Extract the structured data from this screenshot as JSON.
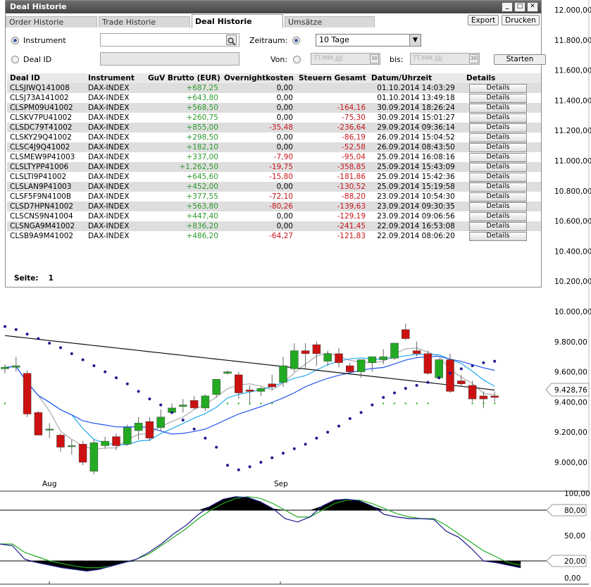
{
  "window": {
    "title": "Deal Historie",
    "controls": [
      "_",
      "□",
      "✕"
    ]
  },
  "tabs": [
    {
      "label": "Order Historie",
      "active": false
    },
    {
      "label": "Trade Historie",
      "active": false
    },
    {
      "label": "Deal Historie",
      "active": true
    },
    {
      "label": "Umsätze",
      "active": false
    }
  ],
  "toolbar": {
    "export_label": "Export",
    "print_label": "Drucken"
  },
  "filters": {
    "instrument_label": "Instrument",
    "instrument_value": "",
    "dealid_label": "Deal ID",
    "dealid_value": "",
    "zeitraum_label": "Zeitraum:",
    "zeitraum_value": "10 Tage",
    "von_label": "Von:",
    "von_placeholder": "TT.MM.JJJJ",
    "bis_label": "bis:",
    "bis_placeholder": "TT.MM.JJJJ",
    "start_label": "Starten"
  },
  "table": {
    "headers": [
      "Deal ID",
      "Instrument",
      "GuV Brutto (EUR)",
      "Overnightkosten",
      "Steuern Gesamt",
      "Datum/Uhrzeit",
      "Details"
    ],
    "details_label": "Details",
    "rows": [
      [
        "CLSJIWQ141008",
        "DAX-INDEX",
        "+687,25",
        "0,00",
        "",
        "01.10.2014 14:03:29"
      ],
      [
        "CLSJ73A141002",
        "DAX-INDEX",
        "+643,80",
        "0,00",
        "",
        "01.10.2014 13:49:18"
      ],
      [
        "CLSPM09U41002",
        "DAX-INDEX",
        "+568,50",
        "0,00",
        "-164,16",
        "30.09.2014 18:26:24"
      ],
      [
        "CLSKV7PU41002",
        "DAX-INDEX",
        "+260,75",
        "0,00",
        "-75,30",
        "30.09.2014 15:01:27"
      ],
      [
        "CLSDC79T41002",
        "DAX-INDEX",
        "+855,00",
        "-35,48",
        "-236,64",
        "29.09.2014 09:36:14"
      ],
      [
        "CLSKY29Q41002",
        "DAX-INDEX",
        "+298,50",
        "0,00",
        "-86,19",
        "26.09.2014 15:04:52"
      ],
      [
        "CLSC4J9Q41002",
        "DAX-INDEX",
        "+182,10",
        "0,00",
        "-52,58",
        "26.09.2014 08:43:50"
      ],
      [
        "CLSMEW9P41003",
        "DAX-INDEX",
        "+337,00",
        "-7,90",
        "-95,04",
        "25.09.2014 16:08:16"
      ],
      [
        "CLSLTYPP41006",
        "DAX-INDEX",
        "+1.262,50",
        "-19,75",
        "-358,85",
        "25.09.2014 15:43:09"
      ],
      [
        "CLSLTI9P41002",
        "DAX-INDEX",
        "+645,60",
        "-15,80",
        "-181,86",
        "25.09.2014 15:42:36"
      ],
      [
        "CLSLAN9P41003",
        "DAX-INDEX",
        "+452,00",
        "0,00",
        "-130,52",
        "25.09.2014 15:19:58"
      ],
      [
        "CLSF5F9N4100B",
        "DAX-INDEX",
        "+377,55",
        "-72,10",
        "-88,20",
        "23.09.2014 10:54:30"
      ],
      [
        "CLSD7HPN41002",
        "DAX-INDEX",
        "+563,80",
        "-80,26",
        "-139,63",
        "23.09.2014 09:30:35"
      ],
      [
        "CLSCNS9N41004",
        "DAX-INDEX",
        "+447,40",
        "0,00",
        "-129,19",
        "23.09.2014 09:06:56"
      ],
      [
        "CLSNGA9M41002",
        "DAX-INDEX",
        "+836,20",
        "0,00",
        "-241,45",
        "22.09.2014 16:53:08"
      ],
      [
        "CLSB9A9M41002",
        "DAX-INDEX",
        "+486,20",
        "-64,27",
        "-121,83",
        "22.09.2014 08:06:20"
      ]
    ],
    "page_label": "Seite:",
    "page_value": "1"
  },
  "chart": {
    "price_labels": [
      "12.000,00",
      "11.800,00",
      "11.600,00",
      "11.400,00",
      "11.200,00",
      "11.000,00",
      "10.800,00",
      "10.600,00",
      "10.400,00",
      "10.200,00",
      "10.000,00",
      "9.800,00",
      "9.600,00",
      "9.400,00",
      "9.200,00",
      "9.000,00"
    ],
    "last_price": "9.428,76",
    "x_labels": [
      "Aug",
      "Sep"
    ],
    "osc_labels": [
      "100,00",
      "80,00",
      "50,00",
      "20,00",
      "0,00"
    ],
    "colors": {
      "up": "#22aa22",
      "down": "#cc1111",
      "ma_long": "#111111",
      "ma_mid": "#2255ee",
      "ma_short": "#22aaee",
      "ma_gray": "#aaaaaa",
      "sar": "#1a1a8c",
      "stoch_k": "#1a1a8c",
      "stoch_d": "#22aa22"
    }
  },
  "chart_data": {
    "type": "candlestick",
    "title": "",
    "ylim": [
      8900,
      12050
    ],
    "candles": [
      {
        "o": 9620,
        "h": 9650,
        "l": 9590,
        "c": 9630
      },
      {
        "o": 9630,
        "h": 9700,
        "l": 9600,
        "c": 9640
      },
      {
        "o": 9590,
        "h": 9610,
        "l": 9300,
        "c": 9320
      },
      {
        "o": 9330,
        "h": 9340,
        "l": 9180,
        "c": 9180
      },
      {
        "o": 9220,
        "h": 9260,
        "l": 9160,
        "c": 9220
      },
      {
        "o": 9180,
        "h": 9190,
        "l": 9070,
        "c": 9100
      },
      {
        "o": 9110,
        "h": 9150,
        "l": 9050,
        "c": 9110
      },
      {
        "o": 9120,
        "h": 9140,
        "l": 8980,
        "c": 9000
      },
      {
        "o": 8940,
        "h": 9150,
        "l": 8920,
        "c": 9130
      },
      {
        "o": 9110,
        "h": 9170,
        "l": 9090,
        "c": 9140
      },
      {
        "o": 9170,
        "h": 9190,
        "l": 9080,
        "c": 9110
      },
      {
        "o": 9120,
        "h": 9250,
        "l": 9110,
        "c": 9230
      },
      {
        "o": 9210,
        "h": 9300,
        "l": 9150,
        "c": 9260
      },
      {
        "o": 9270,
        "h": 9300,
        "l": 9140,
        "c": 9160
      },
      {
        "o": 9230,
        "h": 9350,
        "l": 9210,
        "c": 9300
      },
      {
        "o": 9330,
        "h": 9390,
        "l": 9320,
        "c": 9360
      },
      {
        "o": 9370,
        "h": 9420,
        "l": 9330,
        "c": 9380
      },
      {
        "o": 9410,
        "h": 9440,
        "l": 9350,
        "c": 9360
      },
      {
        "o": 9360,
        "h": 9450,
        "l": 9340,
        "c": 9440
      },
      {
        "o": 9450,
        "h": 9550,
        "l": 9430,
        "c": 9550
      },
      {
        "o": 9590,
        "h": 9610,
        "l": 9580,
        "c": 9600
      },
      {
        "o": 9580,
        "h": 9600,
        "l": 9420,
        "c": 9460
      },
      {
        "o": 9480,
        "h": 9510,
        "l": 9380,
        "c": 9470
      },
      {
        "o": 9470,
        "h": 9500,
        "l": 9440,
        "c": 9490
      },
      {
        "o": 9520,
        "h": 9580,
        "l": 9480,
        "c": 9500
      },
      {
        "o": 9530,
        "h": 9700,
        "l": 9500,
        "c": 9640
      },
      {
        "o": 9620,
        "h": 9790,
        "l": 9600,
        "c": 9740
      },
      {
        "o": 9740,
        "h": 9790,
        "l": 9620,
        "c": 9720
      },
      {
        "o": 9780,
        "h": 9800,
        "l": 9640,
        "c": 9720
      },
      {
        "o": 9670,
        "h": 9740,
        "l": 9640,
        "c": 9720
      },
      {
        "o": 9720,
        "h": 9760,
        "l": 9630,
        "c": 9660
      },
      {
        "o": 9640,
        "h": 9660,
        "l": 9580,
        "c": 9600
      },
      {
        "o": 9600,
        "h": 9680,
        "l": 9560,
        "c": 9680
      },
      {
        "o": 9660,
        "h": 9700,
        "l": 9600,
        "c": 9700
      },
      {
        "o": 9680,
        "h": 9750,
        "l": 9650,
        "c": 9700
      },
      {
        "o": 9690,
        "h": 9790,
        "l": 9680,
        "c": 9790
      },
      {
        "o": 9880,
        "h": 9920,
        "l": 9810,
        "c": 9820
      },
      {
        "o": 9740,
        "h": 9800,
        "l": 9700,
        "c": 9720
      },
      {
        "o": 9720,
        "h": 9740,
        "l": 9580,
        "c": 9590
      },
      {
        "o": 9560,
        "h": 9690,
        "l": 9560,
        "c": 9680
      },
      {
        "o": 9680,
        "h": 9720,
        "l": 9460,
        "c": 9470
      },
      {
        "o": 9540,
        "h": 9580,
        "l": 9500,
        "c": 9520
      },
      {
        "o": 9510,
        "h": 9540,
        "l": 9400,
        "c": 9420
      },
      {
        "o": 9440,
        "h": 9470,
        "l": 9360,
        "c": 9420
      },
      {
        "o": 9440,
        "h": 9470,
        "l": 9400,
        "c": 9430
      }
    ],
    "sar": [
      9900,
      9880,
      9850,
      9820,
      9790,
      9760,
      9720,
      9680,
      9640,
      9600,
      9560,
      9520,
      9470,
      9420,
      9380,
      9330,
      9280,
      9220,
      9160,
      9100,
      8980,
      8950,
      8970,
      9000,
      9030,
      9060,
      9090,
      9120,
      9160,
      9200,
      9240,
      9290,
      9330,
      9380,
      9430,
      9460,
      9490,
      9510,
      9530,
      9560,
      9590,
      9620,
      9640,
      9660,
      9670
    ],
    "stoch_k": [
      40,
      38,
      22,
      18,
      15,
      12,
      10,
      8,
      10,
      14,
      18,
      22,
      30,
      40,
      52,
      62,
      75,
      85,
      93,
      96,
      95,
      90,
      82,
      70,
      66,
      72,
      85,
      92,
      93,
      91,
      85,
      75,
      72,
      70,
      70,
      69,
      55,
      48,
      35,
      20,
      18,
      15,
      12
    ],
    "stoch_d": [
      40,
      40,
      30,
      25,
      20,
      17,
      14,
      12,
      12,
      14,
      18,
      22,
      28,
      38,
      48,
      58,
      70,
      80,
      88,
      94,
      96,
      94,
      88,
      80,
      72,
      72,
      80,
      88,
      92,
      92,
      88,
      82,
      76,
      72,
      70,
      70,
      62,
      52,
      42,
      32,
      25,
      18,
      15
    ]
  }
}
